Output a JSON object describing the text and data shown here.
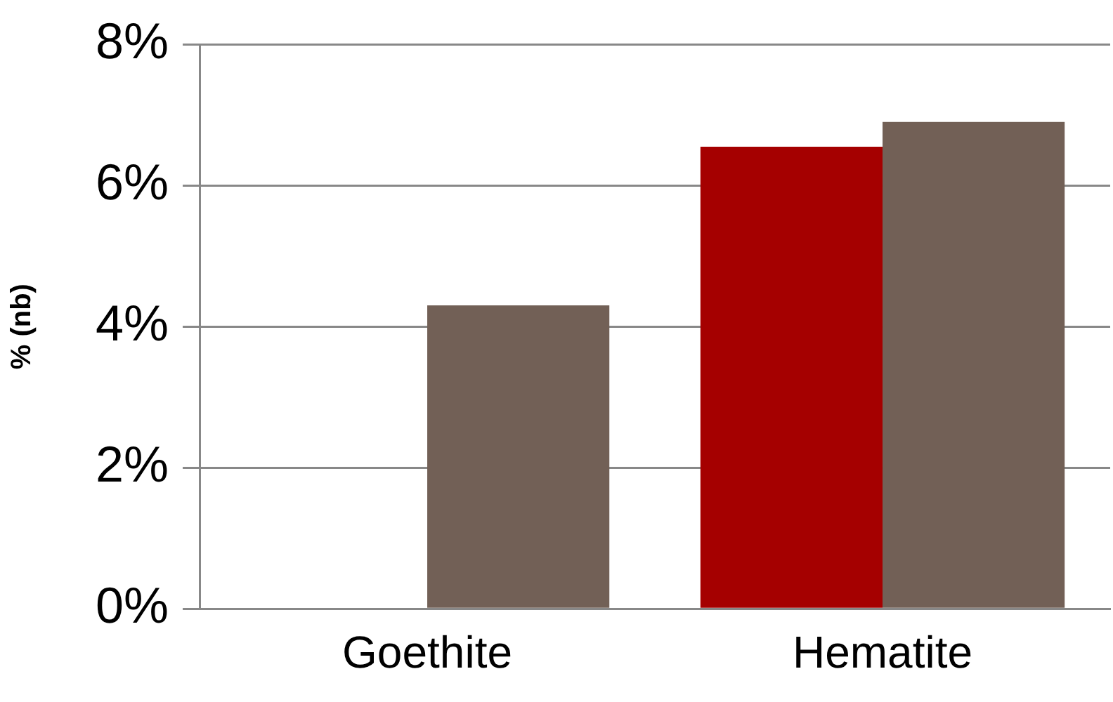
{
  "chart_data": {
    "type": "bar",
    "ylabel": "% (nb)",
    "categories": [
      "Goethite",
      "Hematite"
    ],
    "series": [
      {
        "color": "#a50000",
        "values": [
          0,
          6.55
        ]
      },
      {
        "color": "#726056",
        "values": [
          4.3,
          6.9
        ]
      }
    ],
    "ylim": [
      0,
      8
    ],
    "yticks": [
      {
        "value": 0,
        "label": "0%"
      },
      {
        "value": 2,
        "label": "2%"
      },
      {
        "value": 4,
        "label": "4%"
      },
      {
        "value": 6,
        "label": "6%"
      },
      {
        "value": 8,
        "label": "8%"
      }
    ],
    "grid": "y",
    "legend": false
  }
}
